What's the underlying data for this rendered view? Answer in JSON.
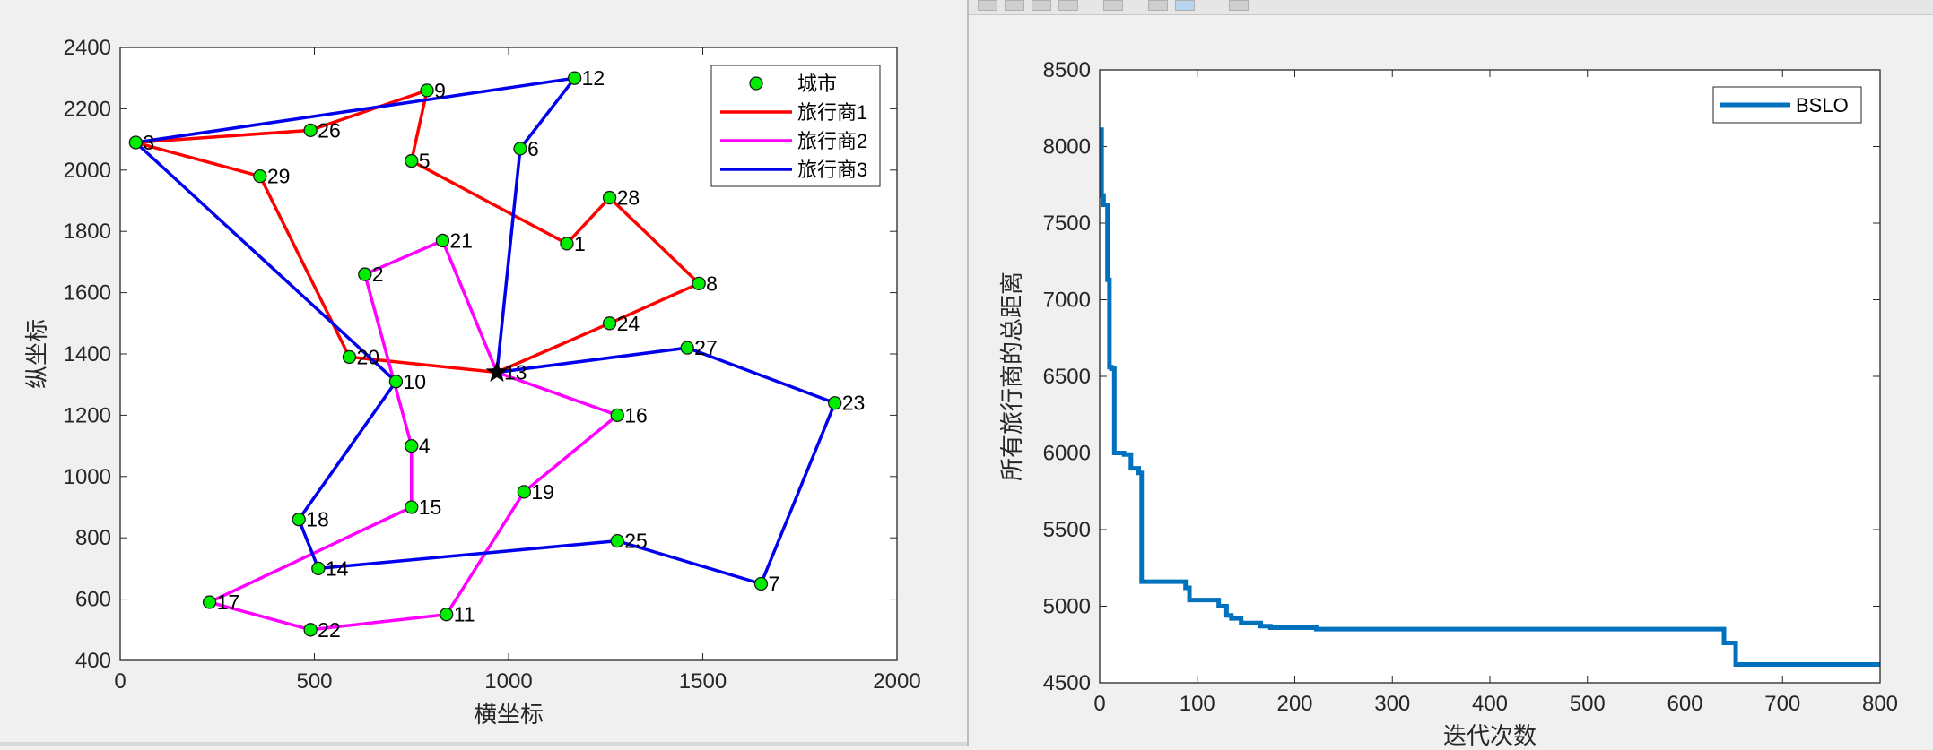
{
  "chart_data": [
    {
      "type": "scatter",
      "title": "",
      "xlabel": "横坐标",
      "ylabel": "纵坐标",
      "xlim": [
        0,
        2000
      ],
      "ylim": [
        400,
        2400
      ],
      "xticks": [
        0,
        500,
        1000,
        1500,
        2000
      ],
      "yticks": [
        400,
        600,
        800,
        1000,
        1200,
        1400,
        1600,
        1800,
        2000,
        2200,
        2400
      ],
      "legend_position": "top-right",
      "legend": [
        "城市",
        "旅行商1",
        "旅行商2",
        "旅行商3"
      ],
      "city_marker_color": "#00ee00",
      "depot": {
        "id": 13,
        "x": 970,
        "y": 1340
      },
      "cities": [
        {
          "id": 1,
          "x": 1150,
          "y": 1760
        },
        {
          "id": 2,
          "x": 630,
          "y": 1660
        },
        {
          "id": 3,
          "x": 40,
          "y": 2090
        },
        {
          "id": 4,
          "x": 750,
          "y": 1100
        },
        {
          "id": 5,
          "x": 750,
          "y": 2030
        },
        {
          "id": 6,
          "x": 1030,
          "y": 2070
        },
        {
          "id": 7,
          "x": 1650,
          "y": 650
        },
        {
          "id": 8,
          "x": 1490,
          "y": 1630
        },
        {
          "id": 9,
          "x": 790,
          "y": 2260
        },
        {
          "id": 10,
          "x": 710,
          "y": 1310
        },
        {
          "id": 11,
          "x": 840,
          "y": 550
        },
        {
          "id": 12,
          "x": 1170,
          "y": 2300
        },
        {
          "id": 13,
          "x": 970,
          "y": 1340
        },
        {
          "id": 14,
          "x": 510,
          "y": 700
        },
        {
          "id": 15,
          "x": 750,
          "y": 900
        },
        {
          "id": 16,
          "x": 1280,
          "y": 1200
        },
        {
          "id": 17,
          "x": 230,
          "y": 590
        },
        {
          "id": 18,
          "x": 460,
          "y": 860
        },
        {
          "id": 19,
          "x": 1040,
          "y": 950
        },
        {
          "id": 20,
          "x": 590,
          "y": 1390
        },
        {
          "id": 21,
          "x": 830,
          "y": 1770
        },
        {
          "id": 22,
          "x": 490,
          "y": 500
        },
        {
          "id": 23,
          "x": 1840,
          "y": 1240
        },
        {
          "id": 24,
          "x": 1260,
          "y": 1500
        },
        {
          "id": 25,
          "x": 1280,
          "y": 790
        },
        {
          "id": 26,
          "x": 490,
          "y": 2130
        },
        {
          "id": 27,
          "x": 1460,
          "y": 1420
        },
        {
          "id": 28,
          "x": 1260,
          "y": 1910
        },
        {
          "id": 29,
          "x": 360,
          "y": 1980
        }
      ],
      "series": [
        {
          "name": "旅行商1",
          "color": "#ff0000",
          "route": [
            13,
            24,
            8,
            28,
            1,
            5,
            9,
            26,
            3,
            29,
            20,
            13
          ]
        },
        {
          "name": "旅行商2",
          "color": "#ff00ff",
          "route": [
            13,
            16,
            19,
            11,
            22,
            17,
            15,
            4,
            2,
            21,
            13
          ]
        },
        {
          "name": "旅行商3",
          "color": "#0000ee",
          "route": [
            13,
            27,
            23,
            7,
            25,
            14,
            18,
            10,
            3,
            12,
            6,
            13
          ]
        }
      ]
    },
    {
      "type": "line",
      "title": "",
      "xlabel": "迭代次数",
      "ylabel": "所有旅行商的总距离",
      "xlim": [
        0,
        800
      ],
      "ylim": [
        4500,
        8500
      ],
      "xticks": [
        0,
        100,
        200,
        300,
        400,
        500,
        600,
        700,
        800
      ],
      "yticks": [
        4500,
        5000,
        5500,
        6000,
        6500,
        7000,
        7500,
        8000,
        8500
      ],
      "legend_position": "top-right",
      "series": [
        {
          "name": "BSLO",
          "color": "#0072bd",
          "x": [
            0,
            2,
            2,
            4,
            4,
            8,
            8,
            10,
            10,
            12,
            12,
            15,
            15,
            25,
            25,
            32,
            32,
            40,
            40,
            43,
            43,
            88,
            88,
            92,
            92,
            122,
            122,
            130,
            130,
            135,
            135,
            145,
            145,
            165,
            165,
            175,
            175,
            222,
            222,
            640,
            640,
            652,
            652,
            800
          ],
          "y": [
            8110,
            8110,
            7680,
            7680,
            7620,
            7620,
            7130,
            7130,
            6560,
            6560,
            6550,
            6550,
            6000,
            6000,
            5990,
            5990,
            5900,
            5900,
            5870,
            5870,
            5160,
            5160,
            5120,
            5120,
            5040,
            5040,
            5000,
            5000,
            4940,
            4940,
            4920,
            4920,
            4890,
            4890,
            4870,
            4870,
            4860,
            4860,
            4850,
            4850,
            4760,
            4760,
            4620,
            4620
          ]
        }
      ]
    }
  ]
}
